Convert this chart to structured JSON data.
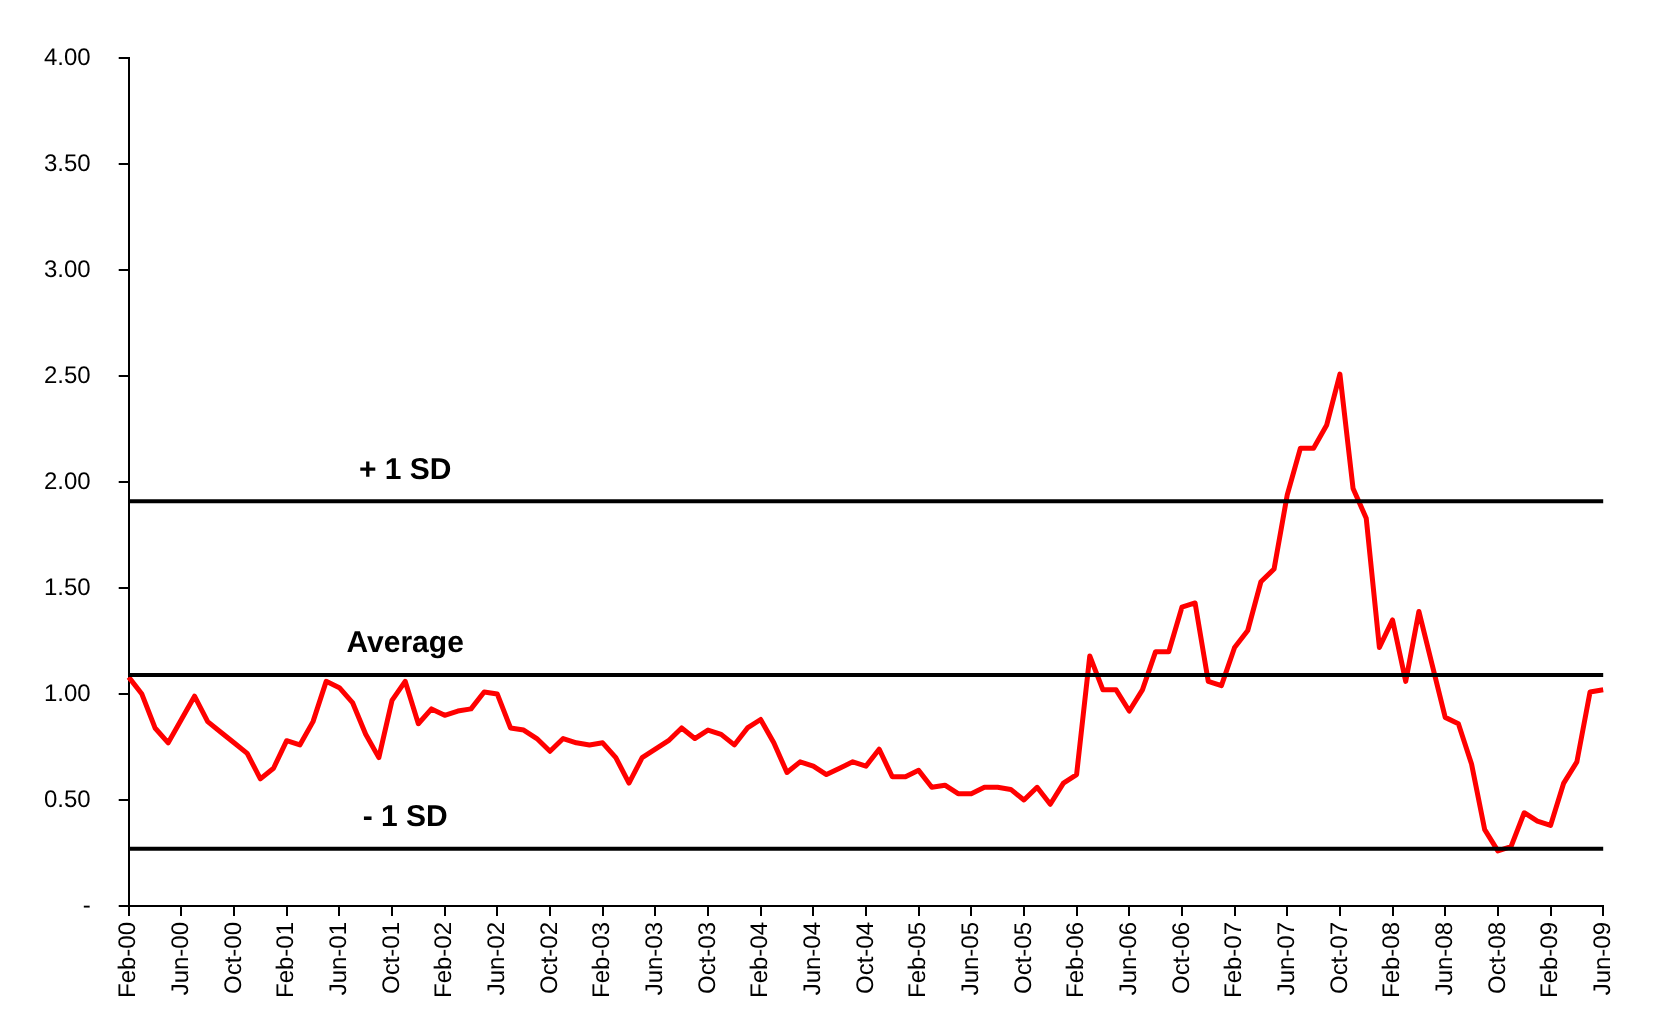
{
  "chart_data": {
    "type": "line",
    "categories": [
      "Feb-00",
      null,
      null,
      null,
      "Jun-00",
      null,
      null,
      null,
      "Oct-00",
      null,
      null,
      null,
      "Feb-01",
      null,
      null,
      null,
      "Jun-01",
      null,
      null,
      null,
      "Oct-01",
      null,
      null,
      null,
      "Feb-02",
      null,
      null,
      null,
      "Jun-02",
      null,
      null,
      null,
      "Oct-02",
      null,
      null,
      null,
      "Feb-03",
      null,
      null,
      null,
      "Jun-03",
      null,
      null,
      null,
      "Oct-03",
      null,
      null,
      null,
      "Feb-04",
      null,
      null,
      null,
      "Jun-04",
      null,
      null,
      null,
      "Oct-04",
      null,
      null,
      null,
      "Feb-05",
      null,
      null,
      null,
      "Jun-05",
      null,
      null,
      null,
      "Oct-05",
      null,
      null,
      null,
      "Feb-06",
      null,
      null,
      null,
      "Jun-06",
      null,
      null,
      null,
      "Oct-06",
      null,
      null,
      null,
      "Feb-07",
      null,
      null,
      null,
      "Jun-07",
      null,
      null,
      null,
      "Oct-07",
      null,
      null,
      null,
      "Feb-08",
      null,
      null,
      null,
      "Jun-08",
      null,
      null,
      null,
      "Oct-08",
      null,
      null,
      null,
      "Feb-09",
      null,
      null,
      null,
      "Jun-09"
    ],
    "series": [
      {
        "color": "#ff0000",
        "values": [
          1.08,
          1.0,
          0.84,
          0.77,
          0.88,
          0.99,
          0.87,
          0.82,
          0.77,
          0.72,
          0.6,
          0.65,
          0.78,
          0.76,
          0.87,
          1.06,
          1.03,
          0.96,
          0.81,
          0.7,
          0.97,
          1.06,
          0.86,
          0.93,
          0.9,
          0.92,
          0.93,
          1.01,
          1.0,
          0.84,
          0.83,
          0.79,
          0.73,
          0.79,
          0.77,
          0.76,
          0.77,
          0.7,
          0.58,
          0.7,
          0.74,
          0.78,
          0.84,
          0.79,
          0.83,
          0.81,
          0.76,
          0.84,
          0.88,
          0.77,
          0.63,
          0.68,
          0.66,
          0.62,
          0.65,
          0.68,
          0.66,
          0.74,
          0.61,
          0.61,
          0.64,
          0.56,
          0.57,
          0.53,
          0.53,
          0.56,
          0.56,
          0.55,
          0.5,
          0.56,
          0.48,
          0.58,
          0.62,
          1.18,
          1.02,
          1.02,
          0.92,
          1.02,
          1.2,
          1.2,
          1.41,
          1.43,
          1.06,
          1.04,
          1.22,
          1.3,
          1.53,
          1.59,
          1.94,
          2.16,
          2.16,
          2.27,
          2.51,
          1.97,
          1.83,
          1.22,
          1.35,
          1.06,
          1.39,
          1.14,
          0.89,
          0.86,
          0.67,
          0.36,
          0.26,
          0.28,
          0.44,
          0.4,
          0.38,
          0.58,
          0.68,
          1.01,
          1.02
        ]
      }
    ],
    "ylim": [
      0,
      4
    ],
    "yticks": [
      {
        "value": 0,
        "label": "-"
      },
      {
        "value": 0.5,
        "label": "0.50"
      },
      {
        "value": 1,
        "label": "1.00"
      },
      {
        "value": 1.5,
        "label": "1.50"
      },
      {
        "value": 2,
        "label": "2.00"
      },
      {
        "value": 2.5,
        "label": "2.50"
      },
      {
        "value": 3,
        "label": "3.00"
      },
      {
        "value": 3.5,
        "label": "3.50"
      },
      {
        "value": 4,
        "label": "4.00"
      }
    ],
    "ref_lines": [
      {
        "axis": "y",
        "value": 1.91,
        "label": "+ 1 SD",
        "color": "#000000"
      },
      {
        "axis": "y",
        "value": 1.09,
        "label": "Average",
        "color": "#000000"
      },
      {
        "axis": "y",
        "value": 0.27,
        "label": "- 1 SD",
        "color": "#000000"
      }
    ],
    "grid": false,
    "legend": false,
    "marker": "none",
    "line_style": "solid"
  }
}
